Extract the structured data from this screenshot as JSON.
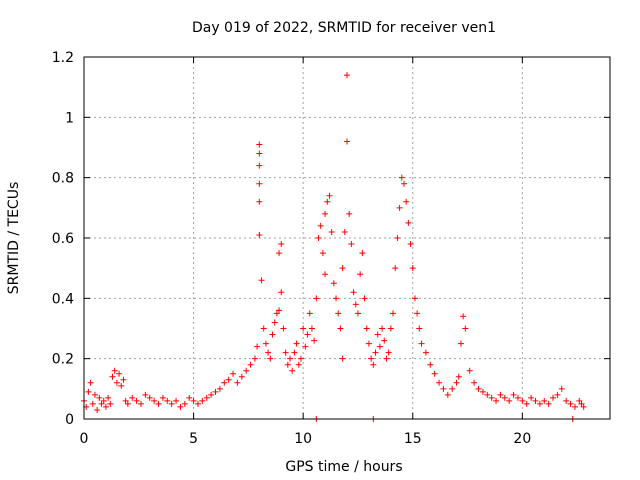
{
  "chart_data": {
    "type": "scatter",
    "title": "Day 019 of 2022, SRMTID for receiver ven1",
    "xlabel": "GPS time / hours",
    "ylabel": "SRMTID / TECUs",
    "xlim": [
      0,
      24
    ],
    "ylim": [
      0,
      1.2
    ],
    "x_ticks": [
      0,
      5,
      10,
      15,
      20
    ],
    "y_ticks": [
      0,
      0.2,
      0.4,
      0.6,
      0.8,
      1,
      1.2
    ],
    "x_tick_labels": [
      "0",
      "5",
      "10",
      "15",
      "20"
    ],
    "y_tick_labels": [
      "0",
      "0.2",
      "0.4",
      "0.6",
      "0.8",
      "1",
      "1.2"
    ],
    "grid": true,
    "marker": "plus",
    "series": [
      {
        "name": "ven1",
        "color": "#ff0000",
        "x": [
          0.0,
          0.1,
          0.2,
          0.3,
          0.4,
          0.5,
          0.6,
          0.7,
          0.8,
          0.9,
          1.0,
          1.1,
          1.2,
          1.3,
          1.4,
          1.5,
          1.6,
          1.7,
          1.8,
          1.9,
          2.0,
          2.2,
          2.4,
          2.6,
          2.8,
          3.0,
          3.2,
          3.4,
          3.6,
          3.8,
          4.0,
          4.2,
          4.4,
          4.6,
          4.8,
          5.0,
          5.2,
          5.4,
          5.6,
          5.8,
          6.0,
          6.2,
          6.4,
          6.6,
          6.8,
          7.0,
          7.2,
          7.4,
          7.6,
          7.8,
          7.9,
          8.0,
          8.0,
          8.0,
          8.0,
          8.0,
          8.0,
          8.1,
          8.2,
          8.3,
          8.4,
          8.5,
          8.6,
          8.7,
          8.8,
          8.9,
          8.9,
          9.0,
          9.0,
          9.1,
          9.2,
          9.3,
          9.4,
          9.5,
          9.6,
          9.7,
          9.8,
          9.9,
          10.0,
          10.1,
          10.2,
          10.3,
          10.4,
          10.5,
          10.6,
          10.7,
          10.8,
          10.9,
          11.0,
          11.0,
          11.1,
          11.2,
          11.3,
          11.4,
          11.5,
          11.6,
          11.7,
          11.8,
          11.8,
          11.9,
          12.0,
          12.0,
          12.1,
          12.2,
          12.3,
          12.4,
          12.5,
          12.6,
          12.7,
          12.8,
          12.9,
          13.0,
          13.1,
          13.2,
          13.3,
          13.4,
          13.5,
          13.6,
          13.7,
          13.8,
          13.9,
          14.0,
          14.1,
          14.2,
          14.3,
          14.4,
          14.5,
          14.6,
          14.7,
          14.8,
          14.9,
          15.0,
          15.1,
          15.2,
          15.3,
          15.4,
          15.6,
          15.8,
          16.0,
          16.2,
          16.4,
          16.6,
          16.8,
          17.0,
          17.1,
          17.2,
          17.3,
          17.4,
          17.6,
          17.8,
          18.0,
          18.2,
          18.4,
          18.6,
          18.8,
          19.0,
          19.2,
          19.4,
          19.6,
          19.8,
          20.0,
          20.2,
          20.4,
          20.6,
          20.8,
          21.0,
          21.2,
          21.4,
          21.6,
          21.8,
          22.0,
          22.2,
          22.4,
          22.6,
          22.7,
          22.8,
          10.6,
          13.2,
          22.3
        ],
        "y": [
          0.06,
          0.04,
          0.09,
          0.12,
          0.05,
          0.08,
          0.03,
          0.07,
          0.05,
          0.06,
          0.04,
          0.07,
          0.05,
          0.14,
          0.16,
          0.12,
          0.15,
          0.11,
          0.13,
          0.06,
          0.05,
          0.07,
          0.06,
          0.05,
          0.08,
          0.07,
          0.06,
          0.05,
          0.07,
          0.06,
          0.05,
          0.06,
          0.04,
          0.05,
          0.07,
          0.06,
          0.05,
          0.06,
          0.07,
          0.08,
          0.09,
          0.1,
          0.12,
          0.13,
          0.15,
          0.12,
          0.14,
          0.16,
          0.18,
          0.2,
          0.24,
          0.91,
          0.88,
          0.84,
          0.78,
          0.72,
          0.61,
          0.46,
          0.3,
          0.25,
          0.22,
          0.2,
          0.28,
          0.32,
          0.35,
          0.36,
          0.55,
          0.58,
          0.42,
          0.3,
          0.22,
          0.18,
          0.2,
          0.16,
          0.22,
          0.25,
          0.18,
          0.2,
          0.3,
          0.24,
          0.28,
          0.35,
          0.3,
          0.26,
          0.4,
          0.6,
          0.64,
          0.55,
          0.48,
          0.68,
          0.72,
          0.74,
          0.62,
          0.45,
          0.4,
          0.35,
          0.3,
          0.2,
          0.5,
          0.62,
          1.14,
          0.92,
          0.68,
          0.58,
          0.42,
          0.38,
          0.35,
          0.48,
          0.55,
          0.4,
          0.3,
          0.25,
          0.2,
          0.18,
          0.22,
          0.28,
          0.24,
          0.3,
          0.26,
          0.2,
          0.22,
          0.3,
          0.35,
          0.5,
          0.6,
          0.7,
          0.8,
          0.78,
          0.72,
          0.65,
          0.58,
          0.5,
          0.4,
          0.35,
          0.3,
          0.25,
          0.22,
          0.18,
          0.15,
          0.12,
          0.1,
          0.08,
          0.1,
          0.12,
          0.14,
          0.25,
          0.34,
          0.3,
          0.16,
          0.12,
          0.1,
          0.09,
          0.08,
          0.07,
          0.06,
          0.08,
          0.07,
          0.06,
          0.08,
          0.07,
          0.06,
          0.05,
          0.07,
          0.06,
          0.05,
          0.06,
          0.05,
          0.07,
          0.08,
          0.1,
          0.06,
          0.05,
          0.04,
          0.06,
          0.05,
          0.04,
          0.0,
          0.0,
          0.0
        ]
      }
    ]
  }
}
